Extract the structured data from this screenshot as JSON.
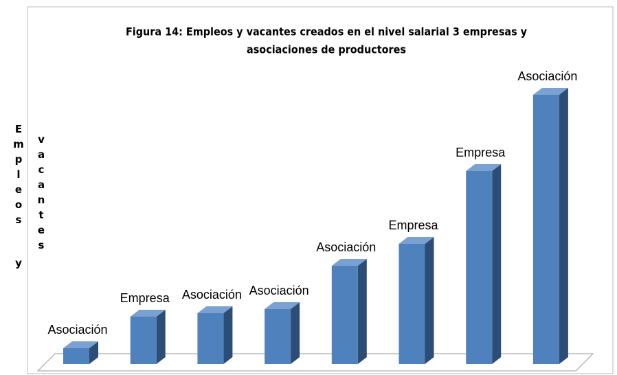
{
  "chart_data": {
    "type": "bar",
    "title": [
      "Figura 14: Empleos y vacantes creados en el nivel salarial 3 empresas y",
      "asociaciones de productores"
    ],
    "ylabel": [
      "Empleos y",
      "vacantes"
    ],
    "categories": [
      "Asociación",
      "Empresa",
      "Asociación",
      "Asociación",
      "Asociación",
      "Empresa",
      "Empresa",
      "Asociación"
    ],
    "values": [
      23,
      69,
      74,
      80,
      143,
      175,
      281,
      392
    ],
    "ylim": [
      0,
      400
    ],
    "color": "#4f81bd",
    "side_color": "#2c4d75",
    "top_color": "#7aa1d2"
  }
}
